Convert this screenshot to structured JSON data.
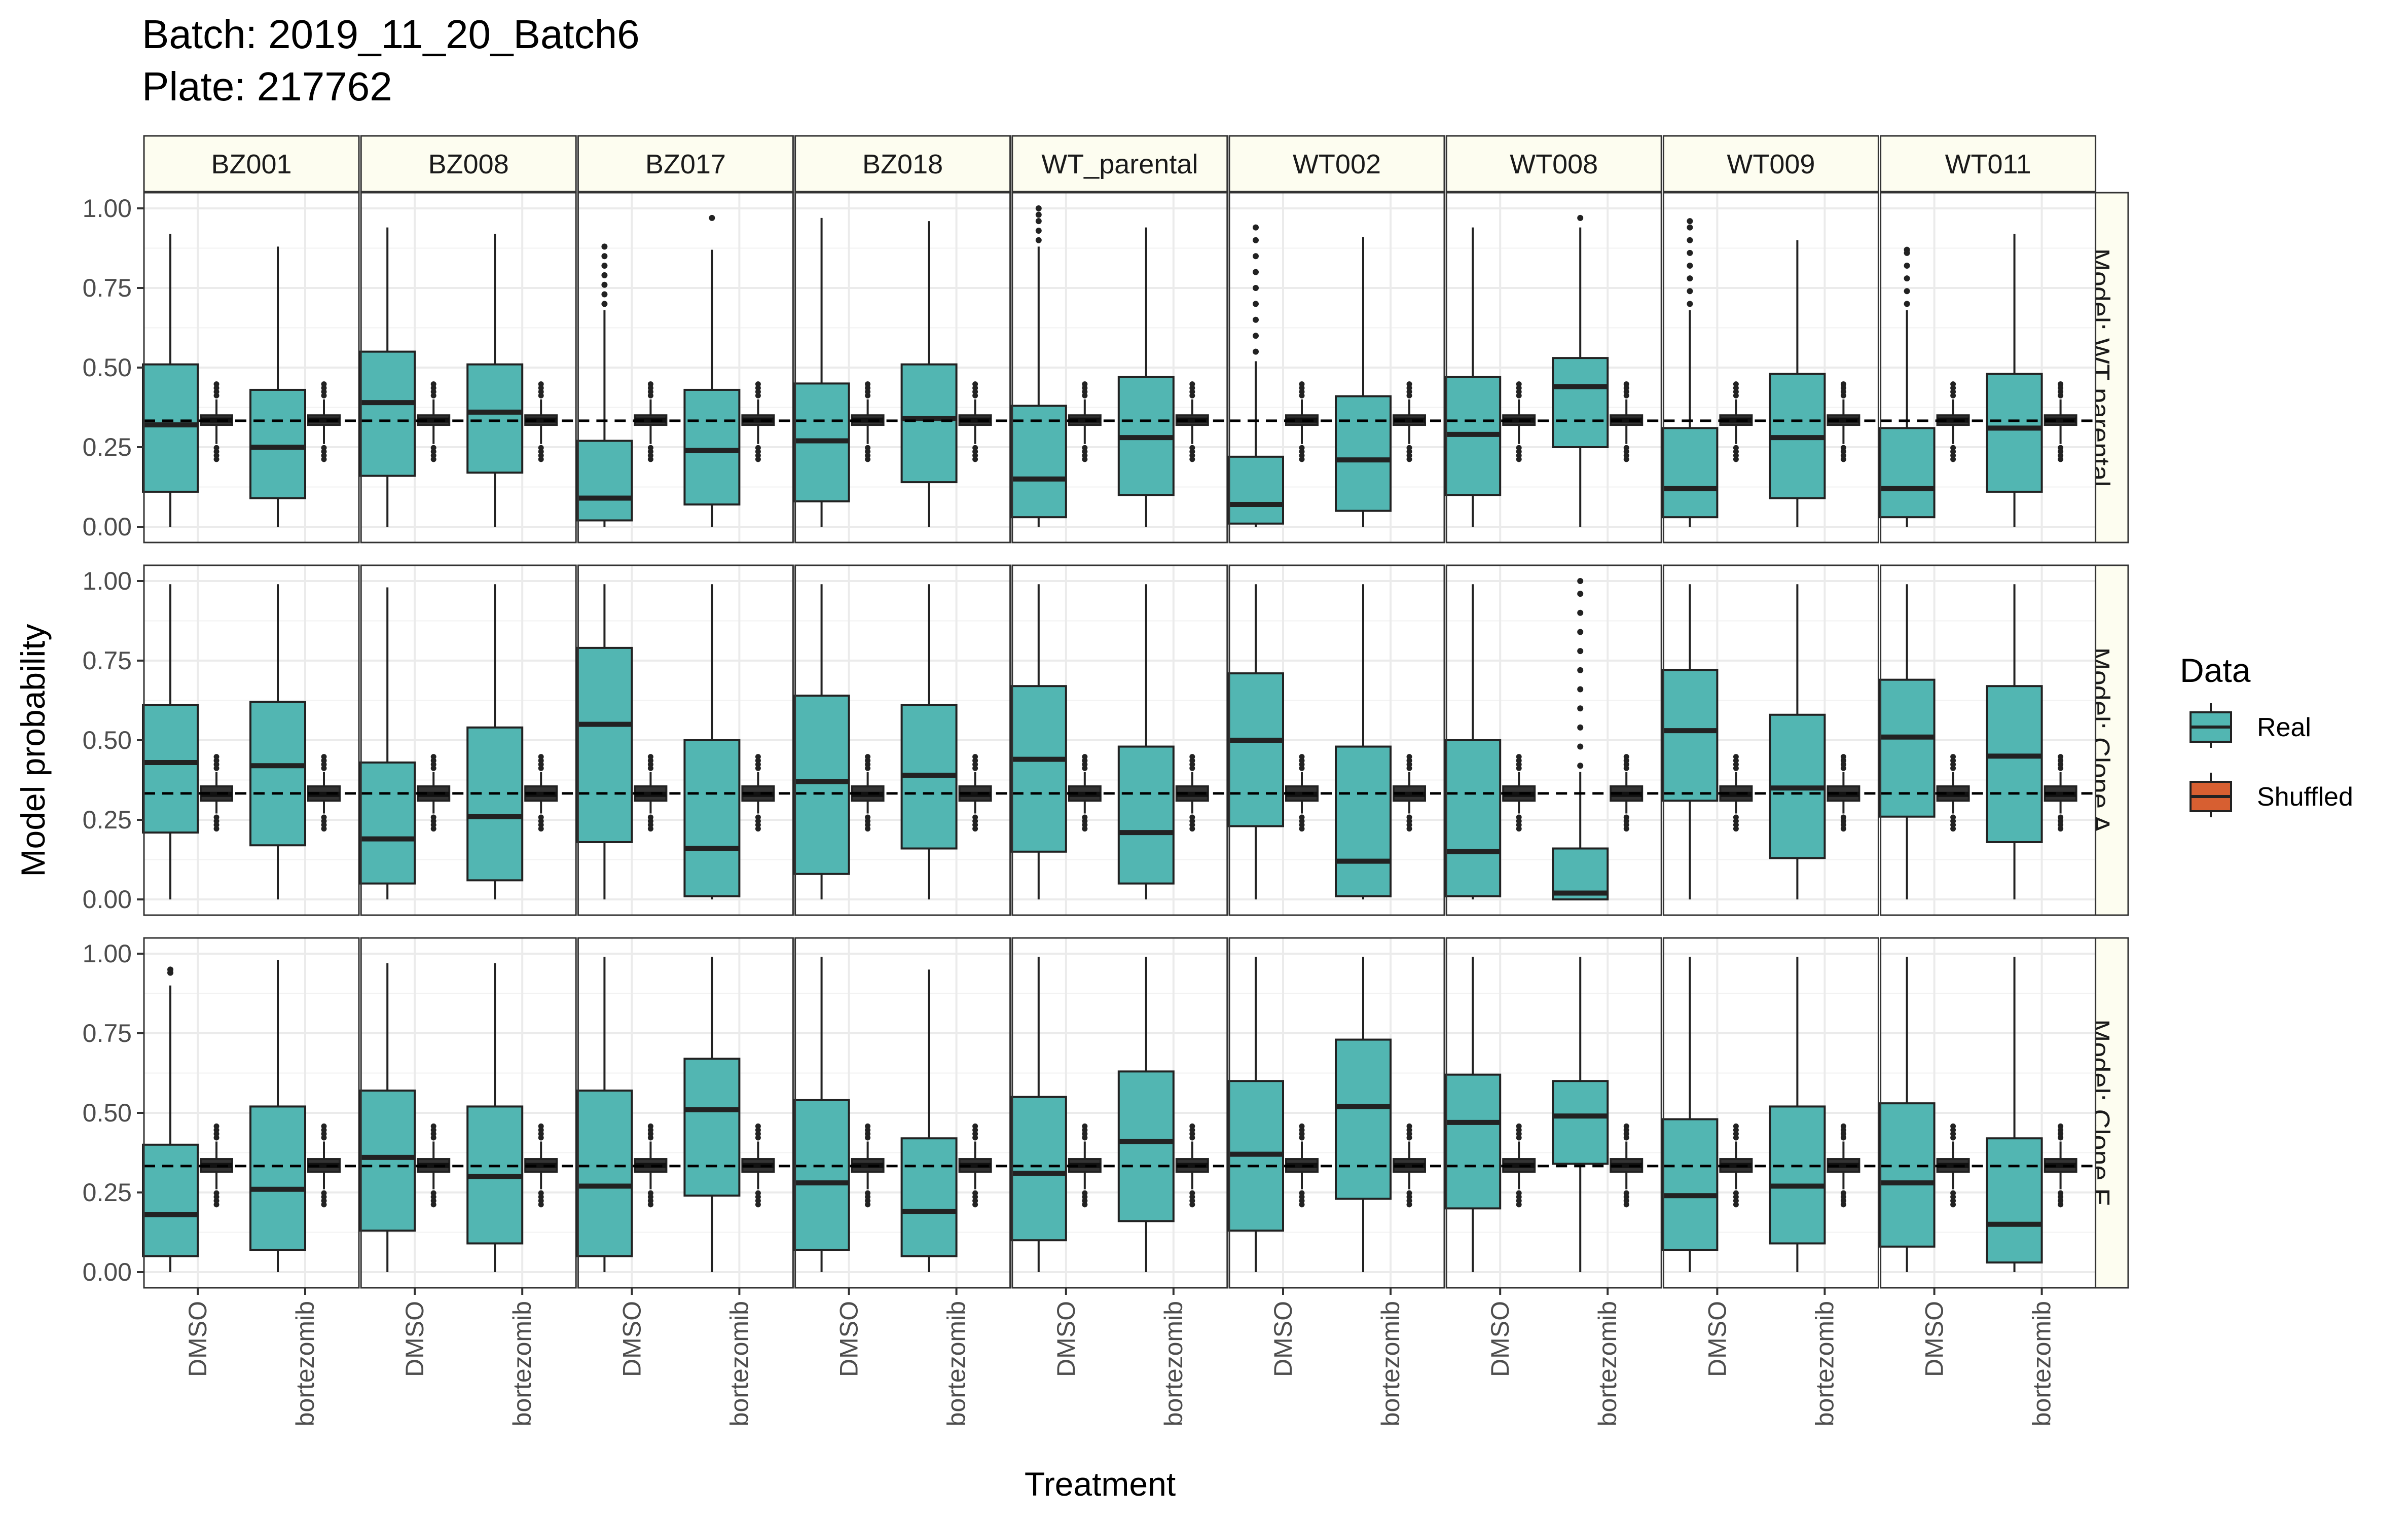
{
  "title_lines": [
    "Batch: 2019_11_20_Batch6",
    "Plate: 217762"
  ],
  "colors": {
    "Real": "#52b6b2",
    "Shuffled": "#d75f31",
    "strip_bg": "#fdfdf0",
    "grid": "#ebebeb"
  },
  "chart_data": {
    "type": "boxplot",
    "xlabel": "Treatment",
    "ylabel": "Model probability",
    "ylim": [
      0,
      1
    ],
    "yticks": [
      0,
      0.25,
      0.5,
      0.75,
      1
    ],
    "ytick_labels": [
      "0.00",
      "0.25",
      "0.50",
      "0.75",
      "1.00"
    ],
    "reference_line_y": 0.333,
    "legend": {
      "title": "Data",
      "entries": [
        "Real",
        "Shuffled"
      ],
      "placement": "right"
    },
    "col_facets": [
      "BZ001",
      "BZ008",
      "BZ017",
      "BZ018",
      "WT_parental",
      "WT002",
      "WT008",
      "WT009",
      "WT011"
    ],
    "row_facets": [
      "Model: WT parental",
      "Model: Clone A",
      "Model: Clone E"
    ],
    "categories": [
      "DMSO",
      "bortezomib"
    ],
    "shuffled": {
      "Model: WT parental": {
        "q1": 0.32,
        "median": 0.335,
        "q3": 0.35,
        "whisker_low": 0.26,
        "whisker_high": 0.4
      },
      "Model: Clone A": {
        "q1": 0.31,
        "median": 0.33,
        "q3": 0.355,
        "whisker_low": 0.27,
        "whisker_high": 0.4
      },
      "Model: Clone E": {
        "q1": 0.315,
        "median": 0.335,
        "q3": 0.355,
        "whisker_low": 0.26,
        "whisker_high": 0.41
      }
    },
    "real": {
      "Model: WT parental": [
        [
          {
            "min": 0.0,
            "q1": 0.11,
            "median": 0.32,
            "q3": 0.51,
            "max": 0.92,
            "outliers": []
          },
          {
            "min": 0.0,
            "q1": 0.09,
            "median": 0.25,
            "q3": 0.43,
            "max": 0.88,
            "outliers": []
          }
        ],
        [
          {
            "min": 0.0,
            "q1": 0.16,
            "median": 0.39,
            "q3": 0.55,
            "max": 0.94,
            "outliers": []
          },
          {
            "min": 0.0,
            "q1": 0.17,
            "median": 0.36,
            "q3": 0.51,
            "max": 0.92,
            "outliers": []
          }
        ],
        [
          {
            "min": 0.0,
            "q1": 0.02,
            "median": 0.09,
            "q3": 0.27,
            "max": 0.68,
            "outliers": [
              0.7,
              0.73,
              0.76,
              0.79,
              0.82,
              0.85,
              0.88
            ]
          },
          {
            "min": 0.0,
            "q1": 0.07,
            "median": 0.24,
            "q3": 0.43,
            "max": 0.87,
            "outliers": [
              0.97
            ]
          }
        ],
        [
          {
            "min": 0.0,
            "q1": 0.08,
            "median": 0.27,
            "q3": 0.45,
            "max": 0.97,
            "outliers": []
          },
          {
            "min": 0.0,
            "q1": 0.14,
            "median": 0.34,
            "q3": 0.51,
            "max": 0.96,
            "outliers": []
          }
        ],
        [
          {
            "min": 0.0,
            "q1": 0.03,
            "median": 0.15,
            "q3": 0.38,
            "max": 0.88,
            "outliers": [
              0.9,
              0.93,
              0.96,
              0.98,
              1.0
            ]
          },
          {
            "min": 0.0,
            "q1": 0.1,
            "median": 0.28,
            "q3": 0.47,
            "max": 0.94,
            "outliers": []
          }
        ],
        [
          {
            "min": 0.0,
            "q1": 0.01,
            "median": 0.07,
            "q3": 0.22,
            "max": 0.52,
            "outliers": [
              0.55,
              0.6,
              0.65,
              0.7,
              0.75,
              0.8,
              0.85,
              0.9,
              0.94
            ]
          },
          {
            "min": 0.0,
            "q1": 0.05,
            "median": 0.21,
            "q3": 0.41,
            "max": 0.91,
            "outliers": []
          }
        ],
        [
          {
            "min": 0.0,
            "q1": 0.1,
            "median": 0.29,
            "q3": 0.47,
            "max": 0.94,
            "outliers": []
          },
          {
            "min": 0.0,
            "q1": 0.25,
            "median": 0.44,
            "q3": 0.53,
            "max": 0.94,
            "outliers": [
              0.97
            ]
          }
        ],
        [
          {
            "min": 0.0,
            "q1": 0.03,
            "median": 0.12,
            "q3": 0.31,
            "max": 0.68,
            "outliers": [
              0.7,
              0.74,
              0.78,
              0.82,
              0.86,
              0.9,
              0.94,
              0.96
            ]
          },
          {
            "min": 0.0,
            "q1": 0.09,
            "median": 0.28,
            "q3": 0.48,
            "max": 0.9,
            "outliers": []
          }
        ],
        [
          {
            "min": 0.0,
            "q1": 0.03,
            "median": 0.12,
            "q3": 0.31,
            "max": 0.68,
            "outliers": [
              0.7,
              0.74,
              0.78,
              0.82,
              0.86,
              0.87
            ]
          },
          {
            "min": 0.0,
            "q1": 0.11,
            "median": 0.31,
            "q3": 0.48,
            "max": 0.92,
            "outliers": []
          }
        ]
      ],
      "Model: Clone A": [
        [
          {
            "min": 0.0,
            "q1": 0.21,
            "median": 0.43,
            "q3": 0.61,
            "max": 0.99,
            "outliers": []
          },
          {
            "min": 0.0,
            "q1": 0.17,
            "median": 0.42,
            "q3": 0.62,
            "max": 0.99,
            "outliers": []
          }
        ],
        [
          {
            "min": 0.0,
            "q1": 0.05,
            "median": 0.19,
            "q3": 0.43,
            "max": 0.98,
            "outliers": []
          },
          {
            "min": 0.0,
            "q1": 0.06,
            "median": 0.26,
            "q3": 0.54,
            "max": 0.99,
            "outliers": []
          }
        ],
        [
          {
            "min": 0.0,
            "q1": 0.18,
            "median": 0.55,
            "q3": 0.79,
            "max": 0.99,
            "outliers": []
          },
          {
            "min": 0.0,
            "q1": 0.01,
            "median": 0.16,
            "q3": 0.5,
            "max": 0.99,
            "outliers": []
          }
        ],
        [
          {
            "min": 0.0,
            "q1": 0.08,
            "median": 0.37,
            "q3": 0.64,
            "max": 0.99,
            "outliers": []
          },
          {
            "min": 0.0,
            "q1": 0.16,
            "median": 0.39,
            "q3": 0.61,
            "max": 0.99,
            "outliers": []
          }
        ],
        [
          {
            "min": 0.0,
            "q1": 0.15,
            "median": 0.44,
            "q3": 0.67,
            "max": 0.99,
            "outliers": []
          },
          {
            "min": 0.0,
            "q1": 0.05,
            "median": 0.21,
            "q3": 0.48,
            "max": 0.99,
            "outliers": []
          }
        ],
        [
          {
            "min": 0.0,
            "q1": 0.23,
            "median": 0.5,
            "q3": 0.71,
            "max": 0.99,
            "outliers": []
          },
          {
            "min": 0.0,
            "q1": 0.01,
            "median": 0.12,
            "q3": 0.48,
            "max": 0.99,
            "outliers": []
          }
        ],
        [
          {
            "min": 0.0,
            "q1": 0.01,
            "median": 0.15,
            "q3": 0.5,
            "max": 0.99,
            "outliers": []
          },
          {
            "min": 0.0,
            "q1": 0.0,
            "median": 0.02,
            "q3": 0.16,
            "max": 0.4,
            "outliers": [
              0.42,
              0.48,
              0.54,
              0.6,
              0.66,
              0.72,
              0.78,
              0.84,
              0.9,
              0.96,
              1.0
            ]
          }
        ],
        [
          {
            "min": 0.0,
            "q1": 0.31,
            "median": 0.53,
            "q3": 0.72,
            "max": 0.99,
            "outliers": []
          },
          {
            "min": 0.0,
            "q1": 0.13,
            "median": 0.35,
            "q3": 0.58,
            "max": 0.99,
            "outliers": []
          }
        ],
        [
          {
            "min": 0.0,
            "q1": 0.26,
            "median": 0.51,
            "q3": 0.69,
            "max": 0.99,
            "outliers": []
          },
          {
            "min": 0.0,
            "q1": 0.18,
            "median": 0.45,
            "q3": 0.67,
            "max": 0.99,
            "outliers": []
          }
        ]
      ],
      "Model: Clone E": [
        [
          {
            "min": 0.0,
            "q1": 0.05,
            "median": 0.18,
            "q3": 0.4,
            "max": 0.9,
            "outliers": [
              0.94,
              0.95
            ]
          },
          {
            "min": 0.0,
            "q1": 0.07,
            "median": 0.26,
            "q3": 0.52,
            "max": 0.98,
            "outliers": []
          }
        ],
        [
          {
            "min": 0.0,
            "q1": 0.13,
            "median": 0.36,
            "q3": 0.57,
            "max": 0.97,
            "outliers": []
          },
          {
            "min": 0.0,
            "q1": 0.09,
            "median": 0.3,
            "q3": 0.52,
            "max": 0.97,
            "outliers": []
          }
        ],
        [
          {
            "min": 0.0,
            "q1": 0.05,
            "median": 0.27,
            "q3": 0.57,
            "max": 0.99,
            "outliers": []
          },
          {
            "min": 0.0,
            "q1": 0.24,
            "median": 0.51,
            "q3": 0.67,
            "max": 0.99,
            "outliers": []
          }
        ],
        [
          {
            "min": 0.0,
            "q1": 0.07,
            "median": 0.28,
            "q3": 0.54,
            "max": 0.99,
            "outliers": []
          },
          {
            "min": 0.0,
            "q1": 0.05,
            "median": 0.19,
            "q3": 0.42,
            "max": 0.95,
            "outliers": []
          }
        ],
        [
          {
            "min": 0.0,
            "q1": 0.1,
            "median": 0.31,
            "q3": 0.55,
            "max": 0.99,
            "outliers": []
          },
          {
            "min": 0.0,
            "q1": 0.16,
            "median": 0.41,
            "q3": 0.63,
            "max": 0.99,
            "outliers": []
          }
        ],
        [
          {
            "min": 0.0,
            "q1": 0.13,
            "median": 0.37,
            "q3": 0.6,
            "max": 0.99,
            "outliers": []
          },
          {
            "min": 0.0,
            "q1": 0.23,
            "median": 0.52,
            "q3": 0.73,
            "max": 0.99,
            "outliers": []
          }
        ],
        [
          {
            "min": 0.0,
            "q1": 0.2,
            "median": 0.47,
            "q3": 0.62,
            "max": 0.99,
            "outliers": []
          },
          {
            "min": 0.0,
            "q1": 0.34,
            "median": 0.49,
            "q3": 0.6,
            "max": 0.99,
            "outliers": []
          }
        ],
        [
          {
            "min": 0.0,
            "q1": 0.07,
            "median": 0.24,
            "q3": 0.48,
            "max": 0.99,
            "outliers": []
          },
          {
            "min": 0.0,
            "q1": 0.09,
            "median": 0.27,
            "q3": 0.52,
            "max": 0.99,
            "outliers": []
          }
        ],
        [
          {
            "min": 0.0,
            "q1": 0.08,
            "median": 0.28,
            "q3": 0.53,
            "max": 0.99,
            "outliers": []
          },
          {
            "min": 0.0,
            "q1": 0.03,
            "median": 0.15,
            "q3": 0.42,
            "max": 0.99,
            "outliers": []
          }
        ]
      ]
    }
  }
}
